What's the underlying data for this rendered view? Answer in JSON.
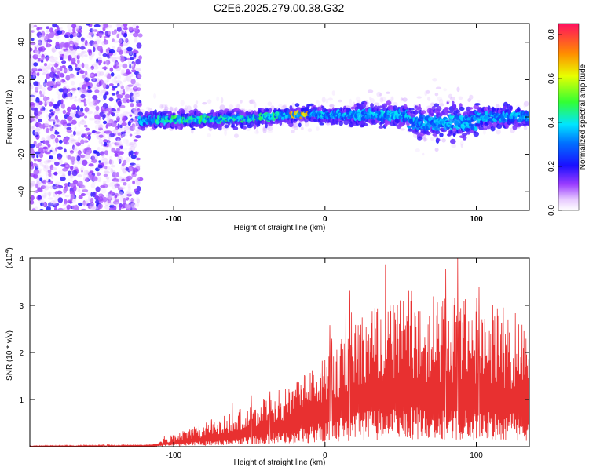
{
  "title": "C2E6.2025.279.00.38.G32",
  "spectrogram": {
    "type": "heatmap",
    "xlabel": "Height of straight line (km)",
    "ylabel": "Frequency (Hz)",
    "xlim": [
      -195,
      135
    ],
    "ylim": [
      -50,
      50
    ],
    "xticks": [
      -100,
      0,
      100
    ],
    "yticks": [
      -40,
      -20,
      0,
      20,
      40
    ],
    "colorbar": {
      "label": "Normalized spectral amplitude",
      "range": [
        0,
        0.85
      ],
      "ticks": [
        "0.0",
        "0.2",
        "0.4",
        "0.6",
        "0.8"
      ],
      "tick_values": [
        0,
        0.2,
        0.4,
        0.6,
        0.8
      ]
    }
  },
  "snr": {
    "type": "line",
    "xlabel": "Height of straight line (km)",
    "ylabel": "SNR (10 * v/v)",
    "multiplier": "(x10",
    "multiplier_exp": "4",
    "multiplier_close": ")",
    "xlim": [
      -195,
      135
    ],
    "ylim": [
      0,
      4
    ],
    "xticks": [
      -100,
      0,
      100
    ],
    "yticks": [
      1,
      2,
      3,
      4
    ],
    "line_color": "#e83030",
    "envelope": [
      {
        "x": -195,
        "base": 0.01,
        "amp": 0.01
      },
      {
        "x": -115,
        "base": 0.02,
        "amp": 0.02
      },
      {
        "x": -100,
        "base": 0.1,
        "amp": 0.15
      },
      {
        "x": -80,
        "base": 0.2,
        "amp": 0.3
      },
      {
        "x": -60,
        "base": 0.3,
        "amp": 0.4
      },
      {
        "x": -40,
        "base": 0.45,
        "amp": 0.55
      },
      {
        "x": -20,
        "base": 0.6,
        "amp": 0.7
      },
      {
        "x": 0,
        "base": 0.9,
        "amp": 0.9
      },
      {
        "x": 20,
        "base": 1.2,
        "amp": 1.3
      },
      {
        "x": 40,
        "base": 1.4,
        "amp": 1.6
      },
      {
        "x": 60,
        "base": 1.4,
        "amp": 1.8
      },
      {
        "x": 80,
        "base": 1.35,
        "amp": 1.8
      },
      {
        "x": 100,
        "base": 1.3,
        "amp": 1.7
      },
      {
        "x": 120,
        "base": 1.2,
        "amp": 1.6
      },
      {
        "x": 135,
        "base": 1.15,
        "amp": 1.5
      }
    ]
  }
}
